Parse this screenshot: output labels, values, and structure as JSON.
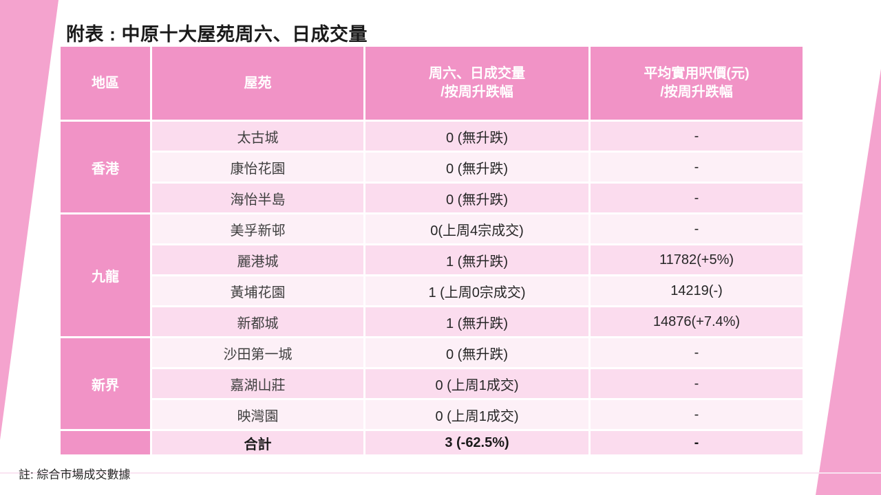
{
  "slide": {
    "title": "附表 : 中原十大屋苑周六、日成交量",
    "note": "註: 綜合市場成交數據"
  },
  "table": {
    "headers": [
      {
        "line1": "地區"
      },
      {
        "line1": "屋苑"
      },
      {
        "line1": "周六、日成交量",
        "line2": "/按周升跌幅"
      },
      {
        "line1": "平均實用呎價(元)",
        "line2": "/按周升跌幅"
      }
    ],
    "groups": [
      {
        "district": "香港",
        "rows": [
          {
            "estate": "太古城",
            "volume": "0 (無升跌)",
            "price": "-"
          },
          {
            "estate": "康怡花園",
            "volume": "0 (無升跌)",
            "price": "-"
          },
          {
            "estate": "海怡半島",
            "volume": "0 (無升跌)",
            "price": "-"
          }
        ]
      },
      {
        "district": "九龍",
        "rows": [
          {
            "estate": "美孚新邨",
            "volume": "0(上周4宗成交)",
            "price": "-"
          },
          {
            "estate": "麗港城",
            "volume": "1 (無升跌)",
            "price": "11782(+5%)"
          },
          {
            "estate": "黃埔花園",
            "volume": "1 (上周0宗成交)",
            "price": "14219(-)"
          },
          {
            "estate": "新都城",
            "volume": "1 (無升跌)",
            "price": "14876(+7.4%)"
          }
        ]
      },
      {
        "district": "新界",
        "rows": [
          {
            "estate": "沙田第一城",
            "volume": "0 (無升跌)",
            "price": "-"
          },
          {
            "estate": "嘉湖山莊",
            "volume": "0 (上周1成交)",
            "price": "-"
          },
          {
            "estate": "映灣園",
            "volume": "0 (上周1成交)",
            "price": "-"
          }
        ]
      }
    ],
    "total": {
      "label": "合計",
      "volume": "3 (-62.5%)",
      "price": "-"
    }
  },
  "colors": {
    "header_pink": "#f193c6",
    "row_pink_odd": "#fbdcee",
    "row_pink_even": "#fdf0f7",
    "decor_pink": "#f4a3ce",
    "faint_line": "#fae3f1"
  }
}
